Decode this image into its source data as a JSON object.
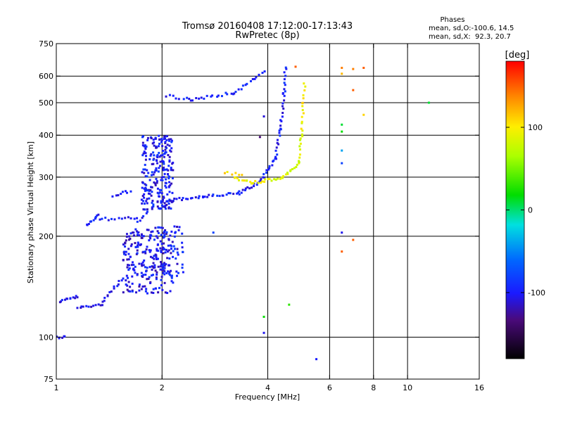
{
  "chart_data": {
    "type": "scatter",
    "title": "Tromsø 20160408 17:12:00-17:13:43",
    "subtitle": "RwPretec (8p)",
    "xlabel": "Frequency [MHz]",
    "ylabel": "Stationary phase Virtual Height [km]",
    "x_scale": "log",
    "y_scale": "log",
    "xlim": [
      1,
      16
    ],
    "ylim": [
      75,
      750
    ],
    "x_ticks": [
      1,
      2,
      4,
      6,
      8,
      10,
      16
    ],
    "y_ticks": [
      75,
      100,
      200,
      300,
      400,
      500,
      600,
      750
    ],
    "x_grid": [
      2,
      4,
      6,
      8,
      10
    ],
    "y_grid": [
      100,
      200,
      300,
      400,
      500,
      600
    ],
    "grid": true,
    "legend": {
      "title": "Phases",
      "lines": [
        "mean, sd,O:-100.6, 14.5",
        "mean, sd,X:  92.3, 20.7"
      ]
    },
    "colorbar": {
      "label": "[deg]",
      "range": [
        -180,
        180
      ],
      "ticks": [
        100,
        0,
        -100
      ],
      "placement": "right"
    },
    "series": [
      {
        "traces": [
          {
            "from": [
              1.0,
              100
            ],
            "to": [
              1.06,
              100
            ],
            "phase": -110,
            "n": 6
          },
          {
            "from": [
              1.02,
              128
            ],
            "to": [
              1.15,
              132
            ],
            "phase": -105,
            "n": 12
          },
          {
            "from": [
              1.15,
              122
            ],
            "to": [
              1.35,
              125
            ],
            "phase": -105,
            "n": 12
          },
          {
            "from": [
              1.35,
              128
            ],
            "to": [
              1.55,
              150
            ],
            "phase": -105,
            "n": 14
          },
          {
            "from": [
              1.22,
              215
            ],
            "to": [
              1.32,
              230
            ],
            "phase": -100,
            "n": 10
          },
          {
            "from": [
              1.3,
              225
            ],
            "to": [
              1.7,
              226
            ],
            "phase": -100,
            "n": 14
          },
          {
            "from": [
              1.7,
              220
            ],
            "to": [
              1.82,
              235
            ],
            "phase": -100,
            "n": 6
          },
          {
            "from": [
              1.45,
              265
            ],
            "to": [
              1.62,
              272
            ],
            "phase": -105,
            "n": 8
          },
          {
            "from": [
              2.02,
              255
            ],
            "to": [
              2.6,
              262
            ],
            "phase": -100,
            "n": 18
          },
          {
            "from": [
              2.6,
              262
            ],
            "to": [
              3.3,
              268
            ],
            "phase": -100,
            "n": 16
          },
          {
            "from": [
              3.3,
              268
            ],
            "to": [
              3.8,
              290
            ],
            "phase": -100,
            "n": 14
          },
          {
            "from": [
              3.8,
              290
            ],
            "to": [
              4.2,
              340
            ],
            "phase": -100,
            "n": 14
          },
          {
            "from": [
              4.2,
              340
            ],
            "to": [
              4.35,
              420
            ],
            "phase": -100,
            "n": 12
          },
          {
            "from": [
              4.35,
              420
            ],
            "to": [
              4.45,
              530
            ],
            "phase": -100,
            "n": 12
          },
          {
            "from": [
              4.45,
              530
            ],
            "to": [
              4.5,
              640
            ],
            "phase": -95,
            "n": 10
          },
          {
            "from": [
              2.05,
              525
            ],
            "to": [
              2.4,
              510
            ],
            "phase": -100,
            "n": 8
          },
          {
            "from": [
              2.4,
              510
            ],
            "to": [
              3.2,
              535
            ],
            "phase": -100,
            "n": 16
          },
          {
            "from": [
              3.2,
              535
            ],
            "to": [
              3.9,
              615
            ],
            "phase": -100,
            "n": 14
          },
          {
            "from": [
              3.2,
              300
            ],
            "to": [
              3.6,
              288
            ],
            "phase": 95,
            "n": 10
          },
          {
            "from": [
              3.6,
              288
            ],
            "to": [
              4.4,
              298
            ],
            "phase": 90,
            "n": 16
          },
          {
            "from": [
              4.4,
              298
            ],
            "to": [
              4.9,
              330
            ],
            "phase": 90,
            "n": 12
          },
          {
            "from": [
              4.9,
              330
            ],
            "to": [
              5.0,
              400
            ],
            "phase": 85,
            "n": 10
          },
          {
            "from": [
              5.0,
              400
            ],
            "to": [
              5.05,
              500
            ],
            "phase": 95,
            "n": 10
          },
          {
            "from": [
              5.05,
              500
            ],
            "to": [
              5.1,
              570
            ],
            "phase": 100,
            "n": 6
          },
          {
            "from": [
              3.0,
              310
            ],
            "to": [
              3.4,
              305
            ],
            "phase": 105,
            "n": 6
          }
        ]
      }
    ],
    "clusters": [
      {
        "x": [
          1.55,
          2.15
        ],
        "y": [
          135,
          210
        ],
        "phase": -105,
        "n": 230
      },
      {
        "x": [
          1.75,
          2.15
        ],
        "y": [
          240,
          400
        ],
        "phase": -100,
        "n": 240
      },
      {
        "x": [
          1.9,
          2.3
        ],
        "y": [
          150,
          215
        ],
        "phase": -100,
        "n": 60
      }
    ],
    "points": [
      {
        "x": 3.9,
        "y": 103,
        "phase": -105
      },
      {
        "x": 5.5,
        "y": 86,
        "phase": -100
      },
      {
        "x": 3.9,
        "y": 115,
        "phase": 20
      },
      {
        "x": 4.6,
        "y": 125,
        "phase": 30
      },
      {
        "x": 11.5,
        "y": 500,
        "phase": 10
      },
      {
        "x": 6.5,
        "y": 205,
        "phase": -105
      },
      {
        "x": 6.5,
        "y": 330,
        "phase": -80
      },
      {
        "x": 6.5,
        "y": 360,
        "phase": -40
      },
      {
        "x": 6.5,
        "y": 410,
        "phase": 20
      },
      {
        "x": 6.5,
        "y": 430,
        "phase": 10
      },
      {
        "x": 6.5,
        "y": 180,
        "phase": 150
      },
      {
        "x": 7.0,
        "y": 195,
        "phase": 150
      },
      {
        "x": 6.5,
        "y": 635,
        "phase": 140
      },
      {
        "x": 6.5,
        "y": 610,
        "phase": 120
      },
      {
        "x": 7.0,
        "y": 630,
        "phase": 140
      },
      {
        "x": 7.5,
        "y": 635,
        "phase": 150
      },
      {
        "x": 7.0,
        "y": 545,
        "phase": 150
      },
      {
        "x": 7.5,
        "y": 460,
        "phase": 110
      },
      {
        "x": 4.8,
        "y": 640,
        "phase": 150
      },
      {
        "x": 2.8,
        "y": 205,
        "phase": -80
      },
      {
        "x": 3.8,
        "y": 395,
        "phase": -135
      },
      {
        "x": 3.9,
        "y": 455,
        "phase": -110
      }
    ]
  }
}
